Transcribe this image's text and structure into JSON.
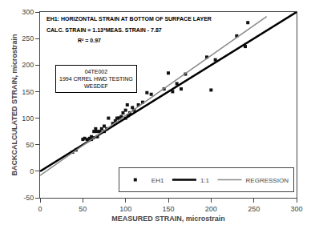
{
  "chart_data": {
    "type": "scatter",
    "title": "EH1: HORIZONTAL STRAIN AT BOTTOM OF SURFACE LAYER",
    "subtitle": "CALC. STRAIN = 1.13*MEAS. STRAIN - 7.87",
    "annotations": [
      "R² = 0.97",
      "04TE002\n1994 CRREL HWD TESTING\nWESDEF"
    ],
    "x_label": "MEASURED STRAIN, microstrain",
    "y_label": "BACKCALCULATED STRAIN, microstrain",
    "xlim": [
      0,
      300
    ],
    "ylim": [
      -50,
      300
    ],
    "xticks": [
      0,
      50,
      100,
      150,
      200,
      250,
      300
    ],
    "yticks": [
      -50,
      0,
      50,
      100,
      150,
      200,
      250,
      300
    ],
    "grid": false,
    "legend": "lower right",
    "series": [
      {
        "name": "EH1",
        "type": "scatter",
        "marker": "square",
        "color": "#111111",
        "x": [
          38,
          42,
          50,
          52,
          55,
          58,
          60,
          60,
          62,
          63,
          65,
          65,
          67,
          68,
          70,
          72,
          75,
          75,
          78,
          80,
          85,
          88,
          90,
          92,
          93,
          95,
          97,
          100,
          100,
          102,
          103,
          105,
          108,
          110,
          115,
          120,
          125,
          130,
          145,
          150,
          155,
          160,
          165,
          170,
          195,
          200,
          205,
          230,
          240,
          243
        ],
        "values": [
          36,
          40,
          60,
          62,
          60,
          62,
          60,
          65,
          63,
          75,
          75,
          80,
          65,
          75,
          75,
          80,
          75,
          85,
          80,
          100,
          90,
          95,
          100,
          100,
          100,
          103,
          110,
          100,
          115,
          125,
          105,
          110,
          120,
          115,
          125,
          130,
          148,
          145,
          155,
          185,
          150,
          165,
          155,
          183,
          215,
          153,
          210,
          255,
          235,
          280
        ]
      },
      {
        "name": "1:1",
        "type": "line",
        "line_style": "solid",
        "color": "#000000",
        "x": [
          0,
          300
        ],
        "values": [
          0,
          300
        ]
      },
      {
        "name": "REGRESSION",
        "type": "line",
        "line_style": "solid",
        "color": "#888888",
        "x": [
          0,
          265
        ],
        "values": [
          -7.87,
          291.58
        ]
      }
    ]
  }
}
